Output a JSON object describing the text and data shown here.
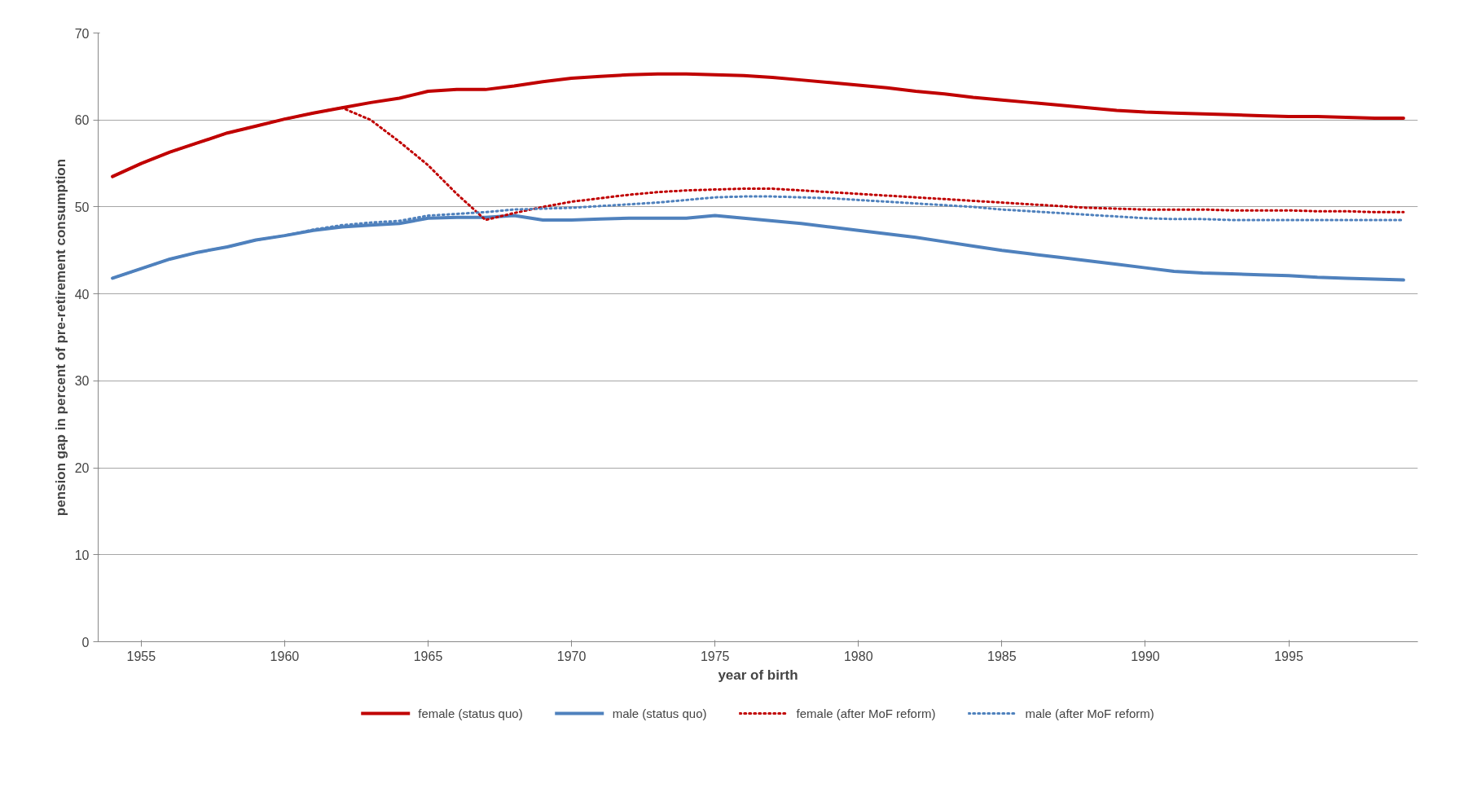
{
  "chart_data": {
    "type": "line",
    "xlabel": "year of birth",
    "ylabel": "pension gap in percent of pre-retirement consumption",
    "x": [
      1954,
      1955,
      1956,
      1957,
      1958,
      1959,
      1960,
      1961,
      1962,
      1963,
      1964,
      1965,
      1966,
      1967,
      1968,
      1969,
      1970,
      1971,
      1972,
      1973,
      1974,
      1975,
      1976,
      1977,
      1978,
      1979,
      1980,
      1981,
      1982,
      1983,
      1984,
      1985,
      1986,
      1987,
      1988,
      1989,
      1990,
      1991,
      1992,
      1993,
      1994,
      1995,
      1996,
      1997,
      1998,
      1999
    ],
    "series": [
      {
        "name": "female (status quo)",
        "color": "#c00000",
        "line_style": "solid",
        "values": [
          53.5,
          55,
          56.3,
          57.4,
          58.5,
          59.3,
          60.1,
          60.8,
          61.4,
          62.0,
          62.5,
          63.3,
          63.5,
          63.5,
          63.9,
          64.4,
          64.8,
          65.0,
          65.2,
          65.3,
          65.3,
          65.2,
          65.1,
          64.9,
          64.6,
          64.3,
          64.0,
          63.7,
          63.3,
          63.0,
          62.6,
          62.3,
          62.0,
          61.7,
          61.4,
          61.1,
          60.9,
          60.8,
          60.7,
          60.6,
          60.5,
          60.4,
          60.4,
          60.3,
          60.2,
          60.2
        ]
      },
      {
        "name": "male (status quo)",
        "color": "#4f81bd",
        "line_style": "solid",
        "values": [
          41.8,
          42.9,
          44.0,
          44.8,
          45.4,
          46.2,
          46.7,
          47.3,
          47.7,
          47.9,
          48.1,
          48.7,
          48.8,
          48.8,
          49.0,
          48.5,
          48.5,
          48.6,
          48.7,
          48.7,
          48.7,
          49.0,
          48.7,
          48.4,
          48.1,
          47.7,
          47.3,
          46.9,
          46.5,
          46.0,
          45.5,
          45.0,
          44.6,
          44.2,
          43.8,
          43.4,
          43.0,
          42.6,
          42.4,
          42.3,
          42.2,
          42.1,
          41.9,
          41.8,
          41.7,
          41.6
        ]
      },
      {
        "name": "female (after MoF reform)",
        "color": "#c00000",
        "line_style": "dotted",
        "values": [
          53.5,
          55,
          56.3,
          57.4,
          58.5,
          59.3,
          60.1,
          60.8,
          61.4,
          60.0,
          57.5,
          54.8,
          51.5,
          48.5,
          49.3,
          50.0,
          50.6,
          51.0,
          51.4,
          51.7,
          51.9,
          52.0,
          52.1,
          52.1,
          51.9,
          51.7,
          51.5,
          51.3,
          51.1,
          50.9,
          50.7,
          50.5,
          50.3,
          50.1,
          49.9,
          49.8,
          49.7,
          49.7,
          49.7,
          49.6,
          49.6,
          49.6,
          49.5,
          49.5,
          49.4,
          49.4
        ]
      },
      {
        "name": "male (after MoF reform)",
        "color": "#4f81bd",
        "line_style": "dotted",
        "values": [
          41.8,
          42.9,
          44.0,
          44.8,
          45.4,
          46.2,
          46.7,
          47.4,
          47.9,
          48.2,
          48.4,
          49.0,
          49.2,
          49.4,
          49.7,
          49.8,
          49.9,
          50.1,
          50.3,
          50.5,
          50.8,
          51.1,
          51.2,
          51.2,
          51.1,
          51.0,
          50.8,
          50.6,
          50.4,
          50.2,
          50.0,
          49.7,
          49.5,
          49.3,
          49.1,
          48.9,
          48.7,
          48.6,
          48.6,
          48.5,
          48.5,
          48.5,
          48.5,
          48.5,
          48.5,
          48.5
        ]
      }
    ],
    "xlim": [
      1953.5,
      1999.5
    ],
    "xticks": [
      1955,
      1960,
      1965,
      1970,
      1975,
      1980,
      1985,
      1990,
      1995
    ],
    "ylim": [
      0,
      70
    ],
    "yticks": [
      0,
      10,
      20,
      30,
      40,
      50,
      60,
      70
    ],
    "grid": "y",
    "legend": "bottom"
  }
}
